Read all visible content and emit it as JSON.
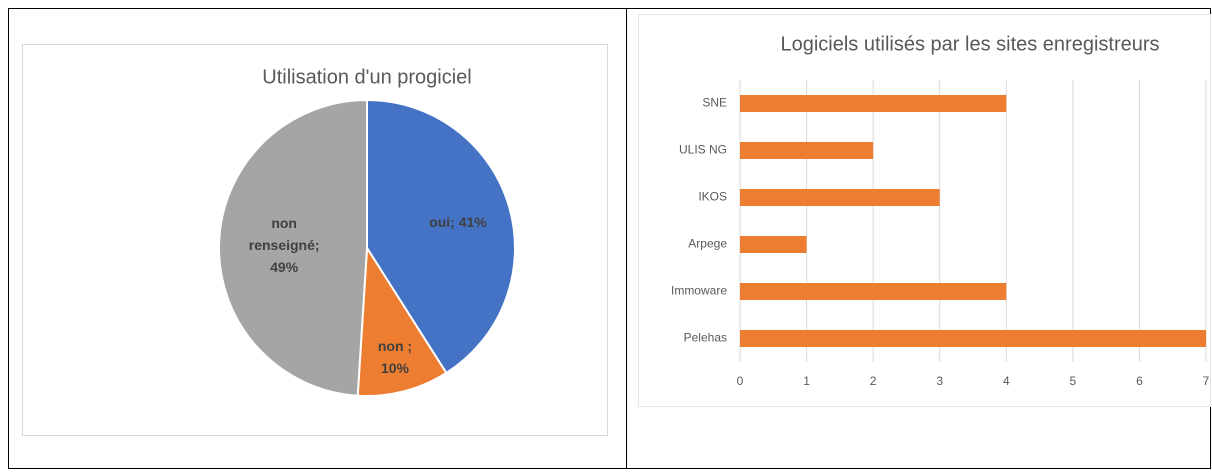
{
  "chart_data": [
    {
      "type": "pie",
      "title": "Utilisation d'un progiciel",
      "values": [
        41,
        10,
        49
      ],
      "value_labels": [
        "oui; 41%",
        "non ; 10%",
        "non renseigné; 49%"
      ],
      "colors": [
        "#4472c4",
        "#ed7d31",
        "#a5a5a5"
      ]
    },
    {
      "type": "barh",
      "title": "Logiciels utilisés par les sites enregistreurs",
      "categories": [
        "SNE",
        "ULIS NG",
        "IKOS",
        "Arpege",
        "Immoware",
        "Pelehas"
      ],
      "values": [
        4,
        2,
        3,
        1,
        4,
        7
      ],
      "color": "#ed7d31",
      "xlim": [
        0,
        7
      ],
      "xticks": [
        0,
        1,
        2,
        3,
        4,
        5,
        6,
        7
      ],
      "grid": true
    }
  ]
}
